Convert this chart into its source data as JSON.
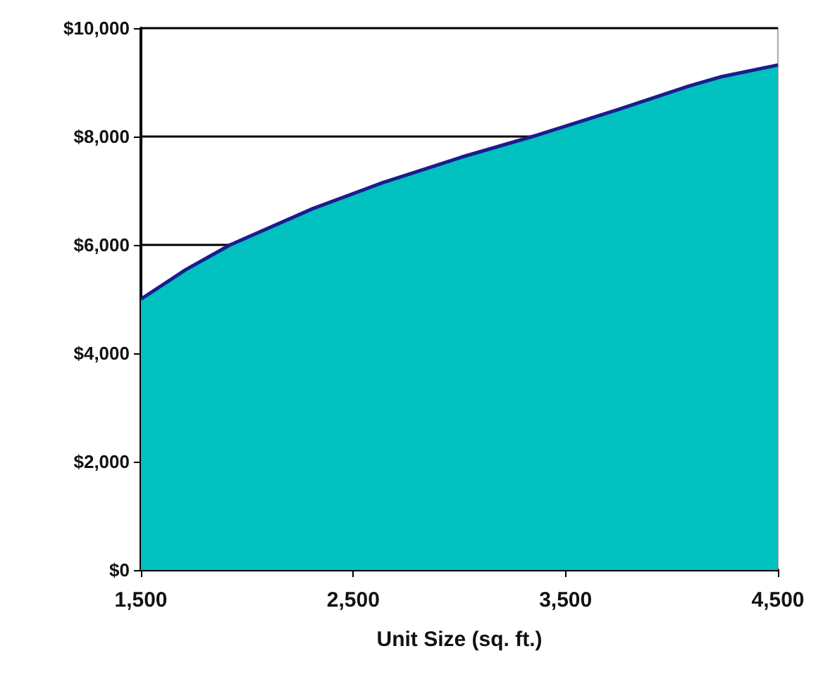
{
  "chart_data": {
    "type": "area",
    "xlabel": "Unit Size (sq. ft.)",
    "x": [
      1500,
      1710,
      1920,
      2310,
      2640,
      3010,
      3370,
      3740,
      4080,
      4230,
      4500
    ],
    "series": [
      {
        "color": "#00c0c0",
        "values": [
          5000,
          5540,
          6000,
          6670,
          7150,
          7620,
          8030,
          8490,
          8930,
          9100,
          9320
        ]
      }
    ],
    "xlim": [
      1500,
      4500
    ],
    "xticks": [
      {
        "value": 1500,
        "label": "1,500"
      },
      {
        "value": 2500,
        "label": "2,500"
      },
      {
        "value": 3500,
        "label": "3,500"
      },
      {
        "value": 4500,
        "label": "4,500"
      }
    ],
    "ylim": [
      0,
      10000
    ],
    "yticks": [
      {
        "value": 0,
        "label": "$0"
      },
      {
        "value": 2000,
        "label": "$2,000"
      },
      {
        "value": 4000,
        "label": "$4,000"
      },
      {
        "value": 6000,
        "label": "$6,000"
      },
      {
        "value": 8000,
        "label": "$8,000"
      },
      {
        "value": 10000,
        "label": "$10,000"
      }
    ],
    "grid": "y"
  }
}
